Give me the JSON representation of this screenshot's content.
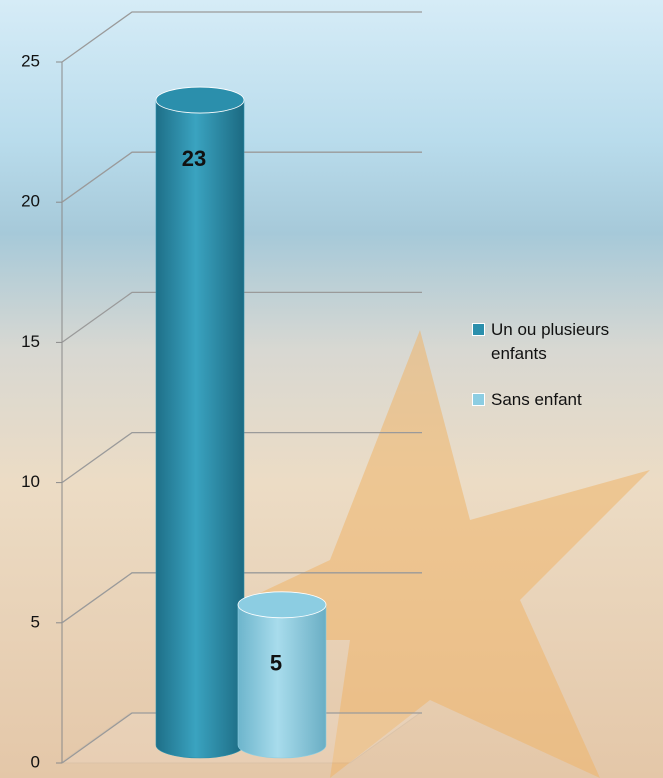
{
  "chart_data": {
    "type": "bar3d-cylinder",
    "categories": [
      null
    ],
    "series": [
      {
        "name": "Un ou plusieurs enfants",
        "color": "#2b8fac",
        "values": [
          23
        ]
      },
      {
        "name": "Sans enfant",
        "color": "#8ccde2",
        "values": [
          5
        ]
      }
    ],
    "ylim": [
      0,
      25
    ],
    "yticks": [
      0,
      5,
      10,
      15,
      20,
      25
    ],
    "grid": true,
    "legend": "right"
  }
}
